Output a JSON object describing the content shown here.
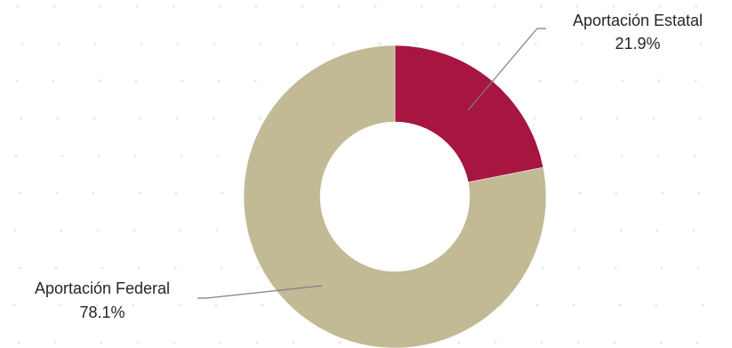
{
  "chart_data": {
    "type": "pie",
    "donut": true,
    "categories": [
      "Aportación Estatal",
      "Aportación Federal"
    ],
    "values": [
      21.9,
      78.1
    ],
    "value_labels": [
      "21.9%",
      "78.1%"
    ],
    "colors": [
      "#A71541",
      "#C2B995"
    ],
    "background_dots_color": "#d9d9d9"
  }
}
